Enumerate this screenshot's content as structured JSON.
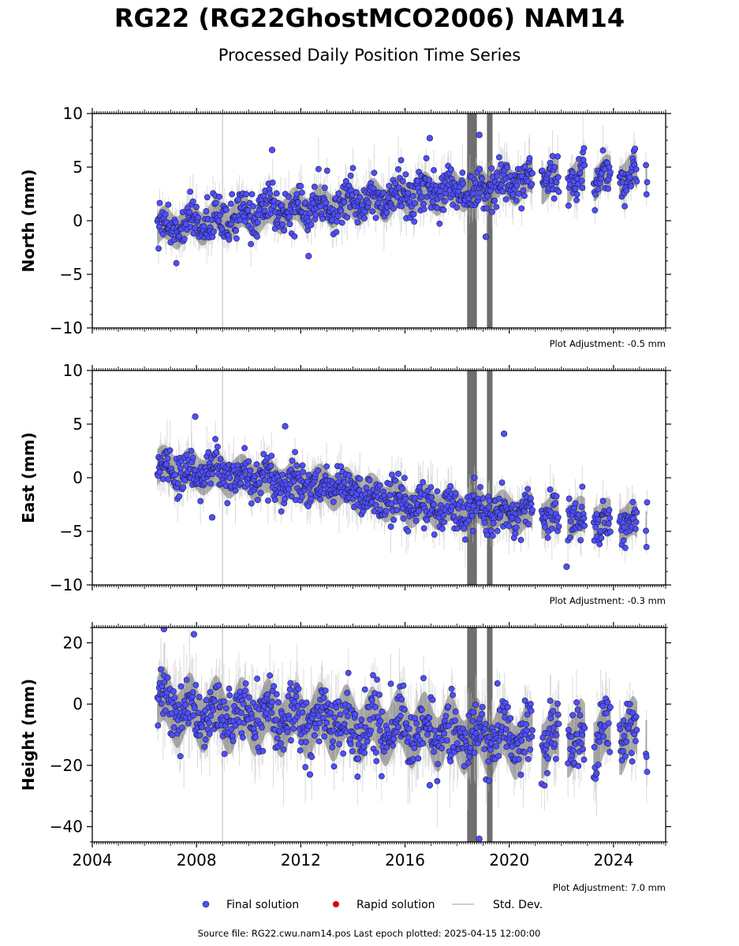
{
  "title": "RG22 (RG22GhostMCO2006) NAM14",
  "subtitle": "Processed Daily Position Time Series",
  "footer": "Source file: RG22.cwu.nam14.pos  Last epoch plotted: 2025-04-15 12:00:00",
  "colors": {
    "final": "#4f4fff",
    "rapid": "#e00000",
    "std": "#bfbfbf",
    "err": "#666666"
  },
  "legend": [
    {
      "label": "Final solution",
      "kind": "final"
    },
    {
      "label": "Rapid solution",
      "kind": "rapid"
    },
    {
      "label": "Std. Dev.",
      "kind": "std"
    }
  ],
  "chart_data": [
    {
      "type": "scatter",
      "ylabel": "North (mm)",
      "note": "Plot Adjustment: -0.5 mm",
      "xlim": [
        2004,
        2026
      ],
      "ylim": [
        -10,
        10
      ],
      "yticks": [
        -10,
        -5,
        0,
        5,
        10
      ],
      "xticks": [
        2004,
        2008,
        2012,
        2016,
        2020,
        2024
      ],
      "show_xtick_labels": false,
      "data_start": 2006.5,
      "data_end": 2025.29,
      "trend": [
        [
          2006.5,
          -0.8
        ],
        [
          2011,
          0.8
        ],
        [
          2016,
          2.2
        ],
        [
          2020,
          3.5
        ],
        [
          2025.29,
          4.3
        ]
      ],
      "scatter_sd": 1.0,
      "annual_amp": 0.6,
      "err_sd": 1.4,
      "reference_line_x": 2009.0,
      "noisy_window": [
        2018.4,
        2019.5
      ],
      "outliers": [
        [
          2016.95,
          7.7
        ],
        [
          2018.85,
          8.0
        ],
        [
          2019.1,
          -1.5
        ],
        [
          2012.3,
          -3.3
        ],
        [
          2010.9,
          6.6
        ]
      ]
    },
    {
      "type": "scatter",
      "ylabel": "East (mm)",
      "note": "Plot Adjustment: -0.3 mm",
      "xlim": [
        2004,
        2026
      ],
      "ylim": [
        -10,
        10
      ],
      "yticks": [
        -10,
        -5,
        0,
        5,
        10
      ],
      "xticks": [
        2004,
        2008,
        2012,
        2016,
        2020,
        2024
      ],
      "show_xtick_labels": false,
      "data_start": 2006.5,
      "data_end": 2025.29,
      "trend": [
        [
          2006.5,
          1.0
        ],
        [
          2010,
          0.0
        ],
        [
          2014,
          -1.2
        ],
        [
          2016,
          -2.5
        ],
        [
          2020,
          -3.3
        ],
        [
          2025.29,
          -4.3
        ]
      ],
      "scatter_sd": 1.0,
      "annual_amp": 0.5,
      "err_sd": 1.5,
      "reference_line_x": 2009.0,
      "noisy_window": [
        2018.4,
        2019.5
      ],
      "outliers": [
        [
          2007.95,
          5.7
        ],
        [
          2019.8,
          4.1
        ],
        [
          2022.2,
          -8.3
        ],
        [
          2008.6,
          -3.7
        ],
        [
          2011.4,
          4.8
        ]
      ]
    },
    {
      "type": "scatter",
      "ylabel": "Height (mm)",
      "note": "Plot Adjustment: 7.0 mm",
      "xlim": [
        2004,
        2026
      ],
      "ylim": [
        -45,
        25
      ],
      "yticks": [
        -40,
        -20,
        0,
        20
      ],
      "xticks": [
        2004,
        2008,
        2012,
        2016,
        2020,
        2024
      ],
      "xtick_labels": [
        "2004",
        "2008",
        "2012",
        "2016",
        "2020",
        "2024"
      ],
      "show_xtick_labels": true,
      "data_start": 2006.5,
      "data_end": 2025.29,
      "trend": [
        [
          2006.5,
          0.0
        ],
        [
          2008,
          -3.0
        ],
        [
          2012,
          -5.0
        ],
        [
          2016,
          -8.0
        ],
        [
          2020,
          -12.0
        ],
        [
          2025.29,
          -10.0
        ]
      ],
      "scatter_sd": 5.0,
      "annual_amp": 4.0,
      "err_sd": 8.0,
      "reference_line_x": 2009.0,
      "noisy_window": [
        2018.4,
        2019.5
      ],
      "outliers": [
        [
          2006.75,
          24.5
        ],
        [
          2007.9,
          22.8
        ],
        [
          2018.85,
          -44.0
        ],
        [
          2016.95,
          -26.5
        ],
        [
          2012.35,
          -23.0
        ]
      ]
    }
  ]
}
